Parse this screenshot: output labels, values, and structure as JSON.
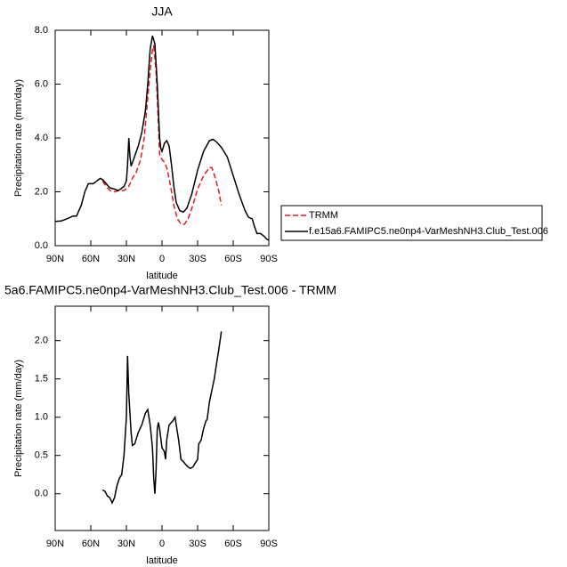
{
  "chart_data": [
    {
      "type": "line",
      "title": "JJA",
      "x_label": "latitude",
      "y_label": "Precipitation rate (mm/day)",
      "xlim": [
        90,
        -90
      ],
      "xticks": [
        {
          "value": 90,
          "label": "90N"
        },
        {
          "value": 60,
          "label": "60N"
        },
        {
          "value": 30,
          "label": "30N"
        },
        0,
        {
          "value": -30,
          "label": "30S"
        },
        {
          "value": -60,
          "label": "60S"
        },
        {
          "value": -90,
          "label": "90S"
        }
      ],
      "ylim": [
        0,
        8
      ],
      "yticks": [
        {
          "value": 0,
          "label": "0.0"
        },
        {
          "value": 2,
          "label": "2.0"
        },
        {
          "value": 4,
          "label": "4.0"
        },
        {
          "value": 6,
          "label": "6.0"
        },
        {
          "value": 8,
          "label": "8.0"
        }
      ],
      "legend": "right",
      "series": [
        {
          "name": "TRMM",
          "color": "#e31a1c",
          "dash": "dashed",
          "x": [
            50,
            47,
            44,
            40,
            36,
            32,
            28,
            25,
            22,
            18,
            15,
            12,
            10,
            8,
            7,
            5,
            3,
            2,
            0,
            -2,
            -4,
            -6,
            -8,
            -10,
            -13,
            -16,
            -19,
            -22,
            -26,
            -30,
            -35,
            -40,
            -42,
            -45,
            -48,
            -50
          ],
          "values": [
            2.4,
            2.2,
            2.05,
            2.0,
            2.05,
            2.05,
            2.2,
            2.5,
            2.7,
            3.2,
            4.0,
            5.5,
            6.5,
            7.3,
            7.4,
            6.5,
            4.5,
            3.4,
            3.2,
            3.1,
            2.9,
            2.5,
            2.0,
            1.5,
            1.0,
            0.8,
            0.8,
            1.0,
            1.5,
            2.1,
            2.6,
            2.9,
            2.9,
            2.5,
            2.0,
            1.5
          ]
        },
        {
          "name": "f.e15a6.FAMIPC5.ne0np4-VarMeshNH3.Club_Test.006",
          "color": "#000000",
          "dash": "solid",
          "x": [
            90,
            85,
            80,
            75,
            72,
            68,
            65,
            62,
            58,
            55,
            52,
            50,
            47,
            44,
            40,
            37,
            35,
            32,
            30,
            29,
            28,
            27,
            26,
            24,
            20,
            17,
            14,
            12,
            10,
            8,
            6,
            4,
            2,
            1,
            0,
            -2,
            -4,
            -6,
            -8,
            -10,
            -12,
            -15,
            -18,
            -21,
            -25,
            -30,
            -35,
            -40,
            -43,
            -46,
            -50,
            -55,
            -60,
            -65,
            -70,
            -73,
            -76,
            -78,
            -80,
            -83,
            -86,
            -88,
            -90
          ],
          "values": [
            0.9,
            0.92,
            1.0,
            1.1,
            1.1,
            1.5,
            2.0,
            2.3,
            2.3,
            2.4,
            2.5,
            2.45,
            2.3,
            2.15,
            2.1,
            2.05,
            2.1,
            2.2,
            2.4,
            3.0,
            4.0,
            3.3,
            2.95,
            3.2,
            3.7,
            4.2,
            5.0,
            6.0,
            7.3,
            7.8,
            7.5,
            6.0,
            4.0,
            3.6,
            3.5,
            3.8,
            3.9,
            3.7,
            3.0,
            2.2,
            1.6,
            1.3,
            1.25,
            1.4,
            1.9,
            2.8,
            3.5,
            3.9,
            3.95,
            3.85,
            3.65,
            3.3,
            2.6,
            1.9,
            1.3,
            1.05,
            1.0,
            0.7,
            0.45,
            0.45,
            0.35,
            0.25,
            0.2
          ]
        }
      ]
    },
    {
      "type": "line",
      "title": "5a6.FAMIPC5.ne0np4-VarMeshNH3.Club_Test.006 - TRMM",
      "x_label": "latitude",
      "y_label": "Precipitation rate (mm/day)",
      "xlim": [
        90,
        -90
      ],
      "xticks": [
        {
          "value": 90,
          "label": "90N"
        },
        {
          "value": 60,
          "label": "60N"
        },
        {
          "value": 30,
          "label": "30N"
        },
        0,
        {
          "value": -30,
          "label": "30S"
        },
        {
          "value": -60,
          "label": "60S"
        },
        {
          "value": -90,
          "label": "90S"
        }
      ],
      "ylim": [
        -0.48,
        2.45
      ],
      "yticks": [
        {
          "value": 0,
          "label": "0.0"
        },
        {
          "value": 0.5,
          "label": "0.5"
        },
        {
          "value": 1,
          "label": "1.0"
        },
        {
          "value": 1.5,
          "label": "1.5"
        },
        {
          "value": 2,
          "label": "2.0"
        }
      ],
      "series": [
        {
          "color": "#000000",
          "dash": "solid",
          "x": [
            50,
            48,
            46,
            44,
            42,
            40,
            38,
            36,
            34,
            32,
            30,
            29,
            28,
            26,
            25,
            23,
            20,
            17,
            14,
            12,
            10,
            8,
            7,
            6,
            5,
            4,
            3,
            2,
            0,
            -2,
            -3,
            -4,
            -6,
            -9,
            -11,
            -12,
            -14,
            -16,
            -18,
            -20,
            -22,
            -24,
            -26,
            -28,
            -30,
            -31,
            -33,
            -35,
            -37,
            -38,
            -40,
            -42,
            -44,
            -46,
            -48,
            -50
          ],
          "values": [
            0.05,
            0.03,
            -0.03,
            -0.05,
            -0.12,
            -0.05,
            0.1,
            0.2,
            0.25,
            0.5,
            1.0,
            1.8,
            1.3,
            0.8,
            0.63,
            0.65,
            0.8,
            0.9,
            1.05,
            1.1,
            0.9,
            0.6,
            0.2,
            0.0,
            0.3,
            0.85,
            0.93,
            0.85,
            0.6,
            0.55,
            0.45,
            0.7,
            0.9,
            0.95,
            1.0,
            0.9,
            0.7,
            0.45,
            0.42,
            0.38,
            0.35,
            0.33,
            0.35,
            0.4,
            0.45,
            0.65,
            0.7,
            0.85,
            0.95,
            0.97,
            1.2,
            1.35,
            1.5,
            1.7,
            1.9,
            2.12
          ]
        }
      ]
    }
  ]
}
